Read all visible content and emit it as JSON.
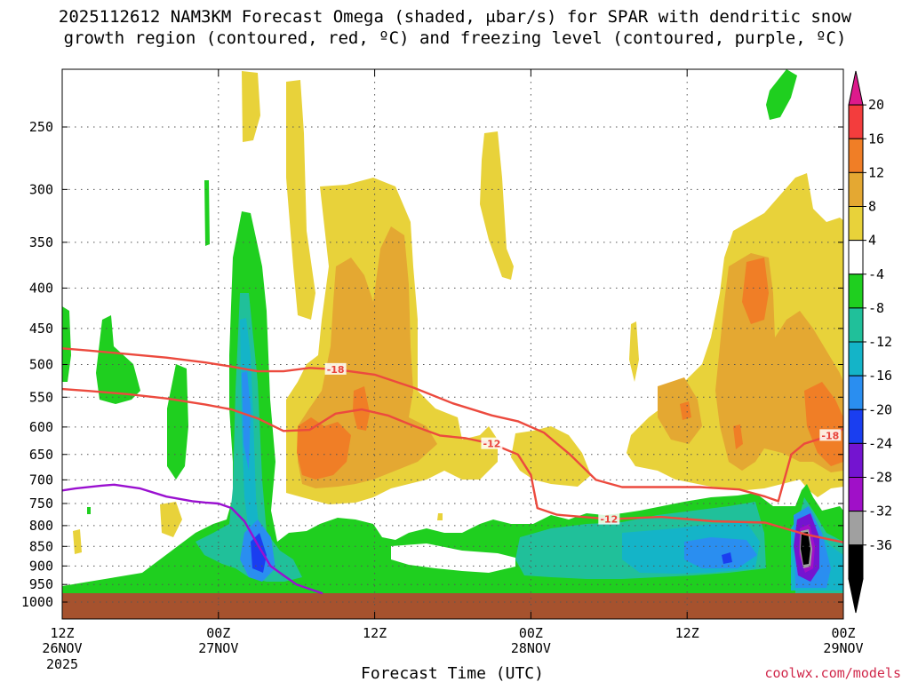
{
  "title": {
    "line1": "2025112612 NAM3KM Forecast Omega (shaded, μbar/s) for SPAR with dendritic snow",
    "line2": "growth region (contoured, red, ºC) and freezing level (contoured, purple, ºC)"
  },
  "credit": "coolwx.com/models",
  "chart_data": {
    "type": "heatmap",
    "title": "2025112612 NAM3KM Forecast Omega (shaded, μbar/s) for SPAR with dendritic snow growth region (contoured, red, ºC) and freezing level (contoured, purple, ºC)",
    "xlabel": "Forecast Time (UTC)",
    "ylabel": "",
    "x_range_hours": [
      0,
      60
    ],
    "y_range_hPa": [
      1000,
      200
    ],
    "y_scale": "log",
    "grid": true,
    "x_ticks": [
      {
        "hour": 0,
        "label": "12Z",
        "date": "26NOV",
        "year": "2025"
      },
      {
        "hour": 12,
        "label": "00Z",
        "date": "27NOV",
        "year": ""
      },
      {
        "hour": 24,
        "label": "12Z",
        "date": "",
        "year": ""
      },
      {
        "hour": 36,
        "label": "00Z",
        "date": "28NOV",
        "year": ""
      },
      {
        "hour": 48,
        "label": "12Z",
        "date": "",
        "year": ""
      },
      {
        "hour": 60,
        "label": "00Z",
        "date": "29NOV",
        "year": ""
      }
    ],
    "y_ticks": [
      250,
      300,
      350,
      400,
      450,
      500,
      550,
      600,
      650,
      700,
      750,
      800,
      850,
      900,
      950,
      1000
    ],
    "colorbar": {
      "labels": [
        20,
        16,
        12,
        8,
        4,
        -4,
        -8,
        -12,
        -16,
        -20,
        -24,
        -28,
        -32,
        -36
      ],
      "colors": [
        "#e8e8e8",
        "#dd1a8c",
        "#f33d3d",
        "#f07e26",
        "#e4a832",
        "#e8d23a",
        "#ffffff",
        "#1fcf1f",
        "#20c09a",
        "#14b4c8",
        "#2a8ef0",
        "#1a3ef0",
        "#7414d0",
        "#a010c8",
        "#a0a0a0",
        "#000000"
      ]
    },
    "series": [
      {
        "name": "-18",
        "color": "#ec4a3e",
        "points": [
          [
            0,
            477
          ],
          [
            2,
            480
          ],
          [
            5,
            485
          ],
          [
            8,
            490
          ],
          [
            11,
            497
          ],
          [
            13,
            503
          ],
          [
            15,
            510
          ],
          [
            17,
            510
          ],
          [
            19,
            505
          ],
          [
            21,
            507
          ],
          [
            24,
            515
          ],
          [
            27,
            535
          ],
          [
            30,
            560
          ],
          [
            33,
            580
          ],
          [
            35,
            590
          ],
          [
            37,
            610
          ],
          [
            39,
            650
          ],
          [
            41,
            700
          ],
          [
            43,
            715
          ],
          [
            46,
            715
          ],
          [
            49,
            715
          ],
          [
            52,
            720
          ],
          [
            54,
            735
          ],
          [
            55,
            745
          ],
          [
            56,
            650
          ],
          [
            57,
            630
          ],
          [
            59,
            615
          ],
          [
            60,
            603
          ]
        ]
      },
      {
        "name": "-12",
        "color": "#ec4a3e",
        "points": [
          [
            0,
            537
          ],
          [
            2,
            540
          ],
          [
            5,
            545
          ],
          [
            8,
            552
          ],
          [
            11,
            562
          ],
          [
            13,
            570
          ],
          [
            15,
            585
          ],
          [
            17,
            607
          ],
          [
            19,
            605
          ],
          [
            21,
            577
          ],
          [
            23,
            570
          ],
          [
            25,
            580
          ],
          [
            27,
            598
          ],
          [
            29,
            615
          ],
          [
            31,
            620
          ],
          [
            33,
            630
          ],
          [
            35,
            650
          ],
          [
            36,
            690
          ],
          [
            36.5,
            760
          ],
          [
            38,
            775
          ],
          [
            42,
            785
          ],
          [
            46,
            780
          ],
          [
            50,
            790
          ],
          [
            54,
            793
          ],
          [
            57,
            820
          ],
          [
            60,
            840
          ]
        ]
      },
      {
        "name": "freezing",
        "color": "#9a10d0",
        "points": [
          [
            0,
            722
          ],
          [
            1,
            718
          ],
          [
            3,
            712
          ],
          [
            4,
            710
          ],
          [
            6,
            718
          ],
          [
            8,
            735
          ],
          [
            10,
            745
          ],
          [
            11,
            748
          ],
          [
            12,
            750
          ],
          [
            13,
            760
          ],
          [
            14,
            790
          ],
          [
            15,
            845
          ],
          [
            16,
            900
          ],
          [
            17,
            925
          ],
          [
            18,
            950
          ],
          [
            20,
            975
          ]
        ]
      }
    ]
  }
}
